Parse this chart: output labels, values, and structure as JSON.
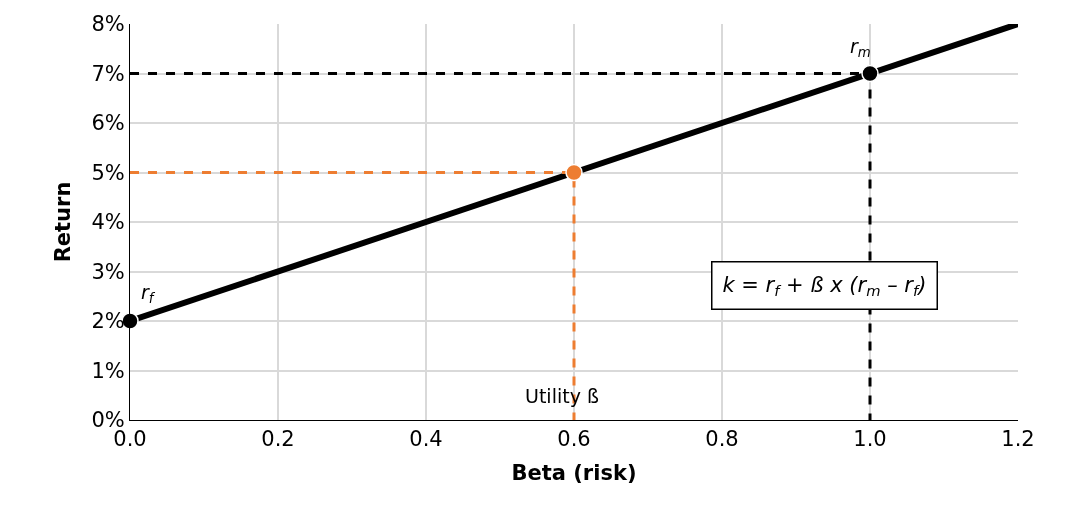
{
  "chart_data": {
    "type": "line",
    "xlabel": "Beta (risk)",
    "ylabel": "Return",
    "xlim": [
      0,
      1.2
    ],
    "xticks": [
      {
        "value": 0,
        "label": "0.0"
      },
      {
        "value": 0.2,
        "label": "0.2"
      },
      {
        "value": 0.4,
        "label": "0.4"
      },
      {
        "value": 0.6,
        "label": "0.6"
      },
      {
        "value": 0.8,
        "label": "0.8"
      },
      {
        "value": 1.0,
        "label": "1.0"
      },
      {
        "value": 1.2,
        "label": "1.2"
      }
    ],
    "ylim": [
      0,
      8
    ],
    "yticks": [
      {
        "value": 0,
        "label": "0%"
      },
      {
        "value": 1,
        "label": "1%"
      },
      {
        "value": 2,
        "label": "2%"
      },
      {
        "value": 3,
        "label": "3%"
      },
      {
        "value": 4,
        "label": "4%"
      },
      {
        "value": 5,
        "label": "5%"
      },
      {
        "value": 6,
        "label": "6%"
      },
      {
        "value": 7,
        "label": "7%"
      },
      {
        "value": 8,
        "label": "8%"
      }
    ],
    "grid": true,
    "series": [
      {
        "color": "#000000",
        "x": [
          0,
          1.2
        ],
        "values": [
          2,
          8
        ],
        "line_style": "solid",
        "marker": "none"
      },
      {
        "color": "#000000",
        "x": [
          0,
          1.0,
          1.0
        ],
        "values": [
          7,
          7,
          0
        ],
        "line_style": "dashed",
        "marker": "none"
      },
      {
        "color": "#ed7d31",
        "x": [
          0,
          0.6,
          0.6
        ],
        "values": [
          5,
          5,
          0
        ],
        "line_style": "dashed",
        "marker": "none"
      },
      {
        "type": "scatter",
        "color": "#000000",
        "x": [
          0,
          1.0
        ],
        "values": [
          2,
          7
        ],
        "marker": "circle"
      },
      {
        "type": "scatter",
        "color": "#ed7d31",
        "x": [
          0.6
        ],
        "values": [
          5
        ],
        "marker": "circle"
      }
    ],
    "annotations": [
      {
        "text": "r$_{f}$",
        "x": 0,
        "y": 2
      },
      {
        "text": "r$_{m}$",
        "x": 1.0,
        "y": 7
      },
      {
        "text": "Utility ß",
        "x": 0.6,
        "y": 0
      },
      "k = r$_{f}$ + ß x (r$_{m}$ – r$_{f}$)"
    ]
  }
}
